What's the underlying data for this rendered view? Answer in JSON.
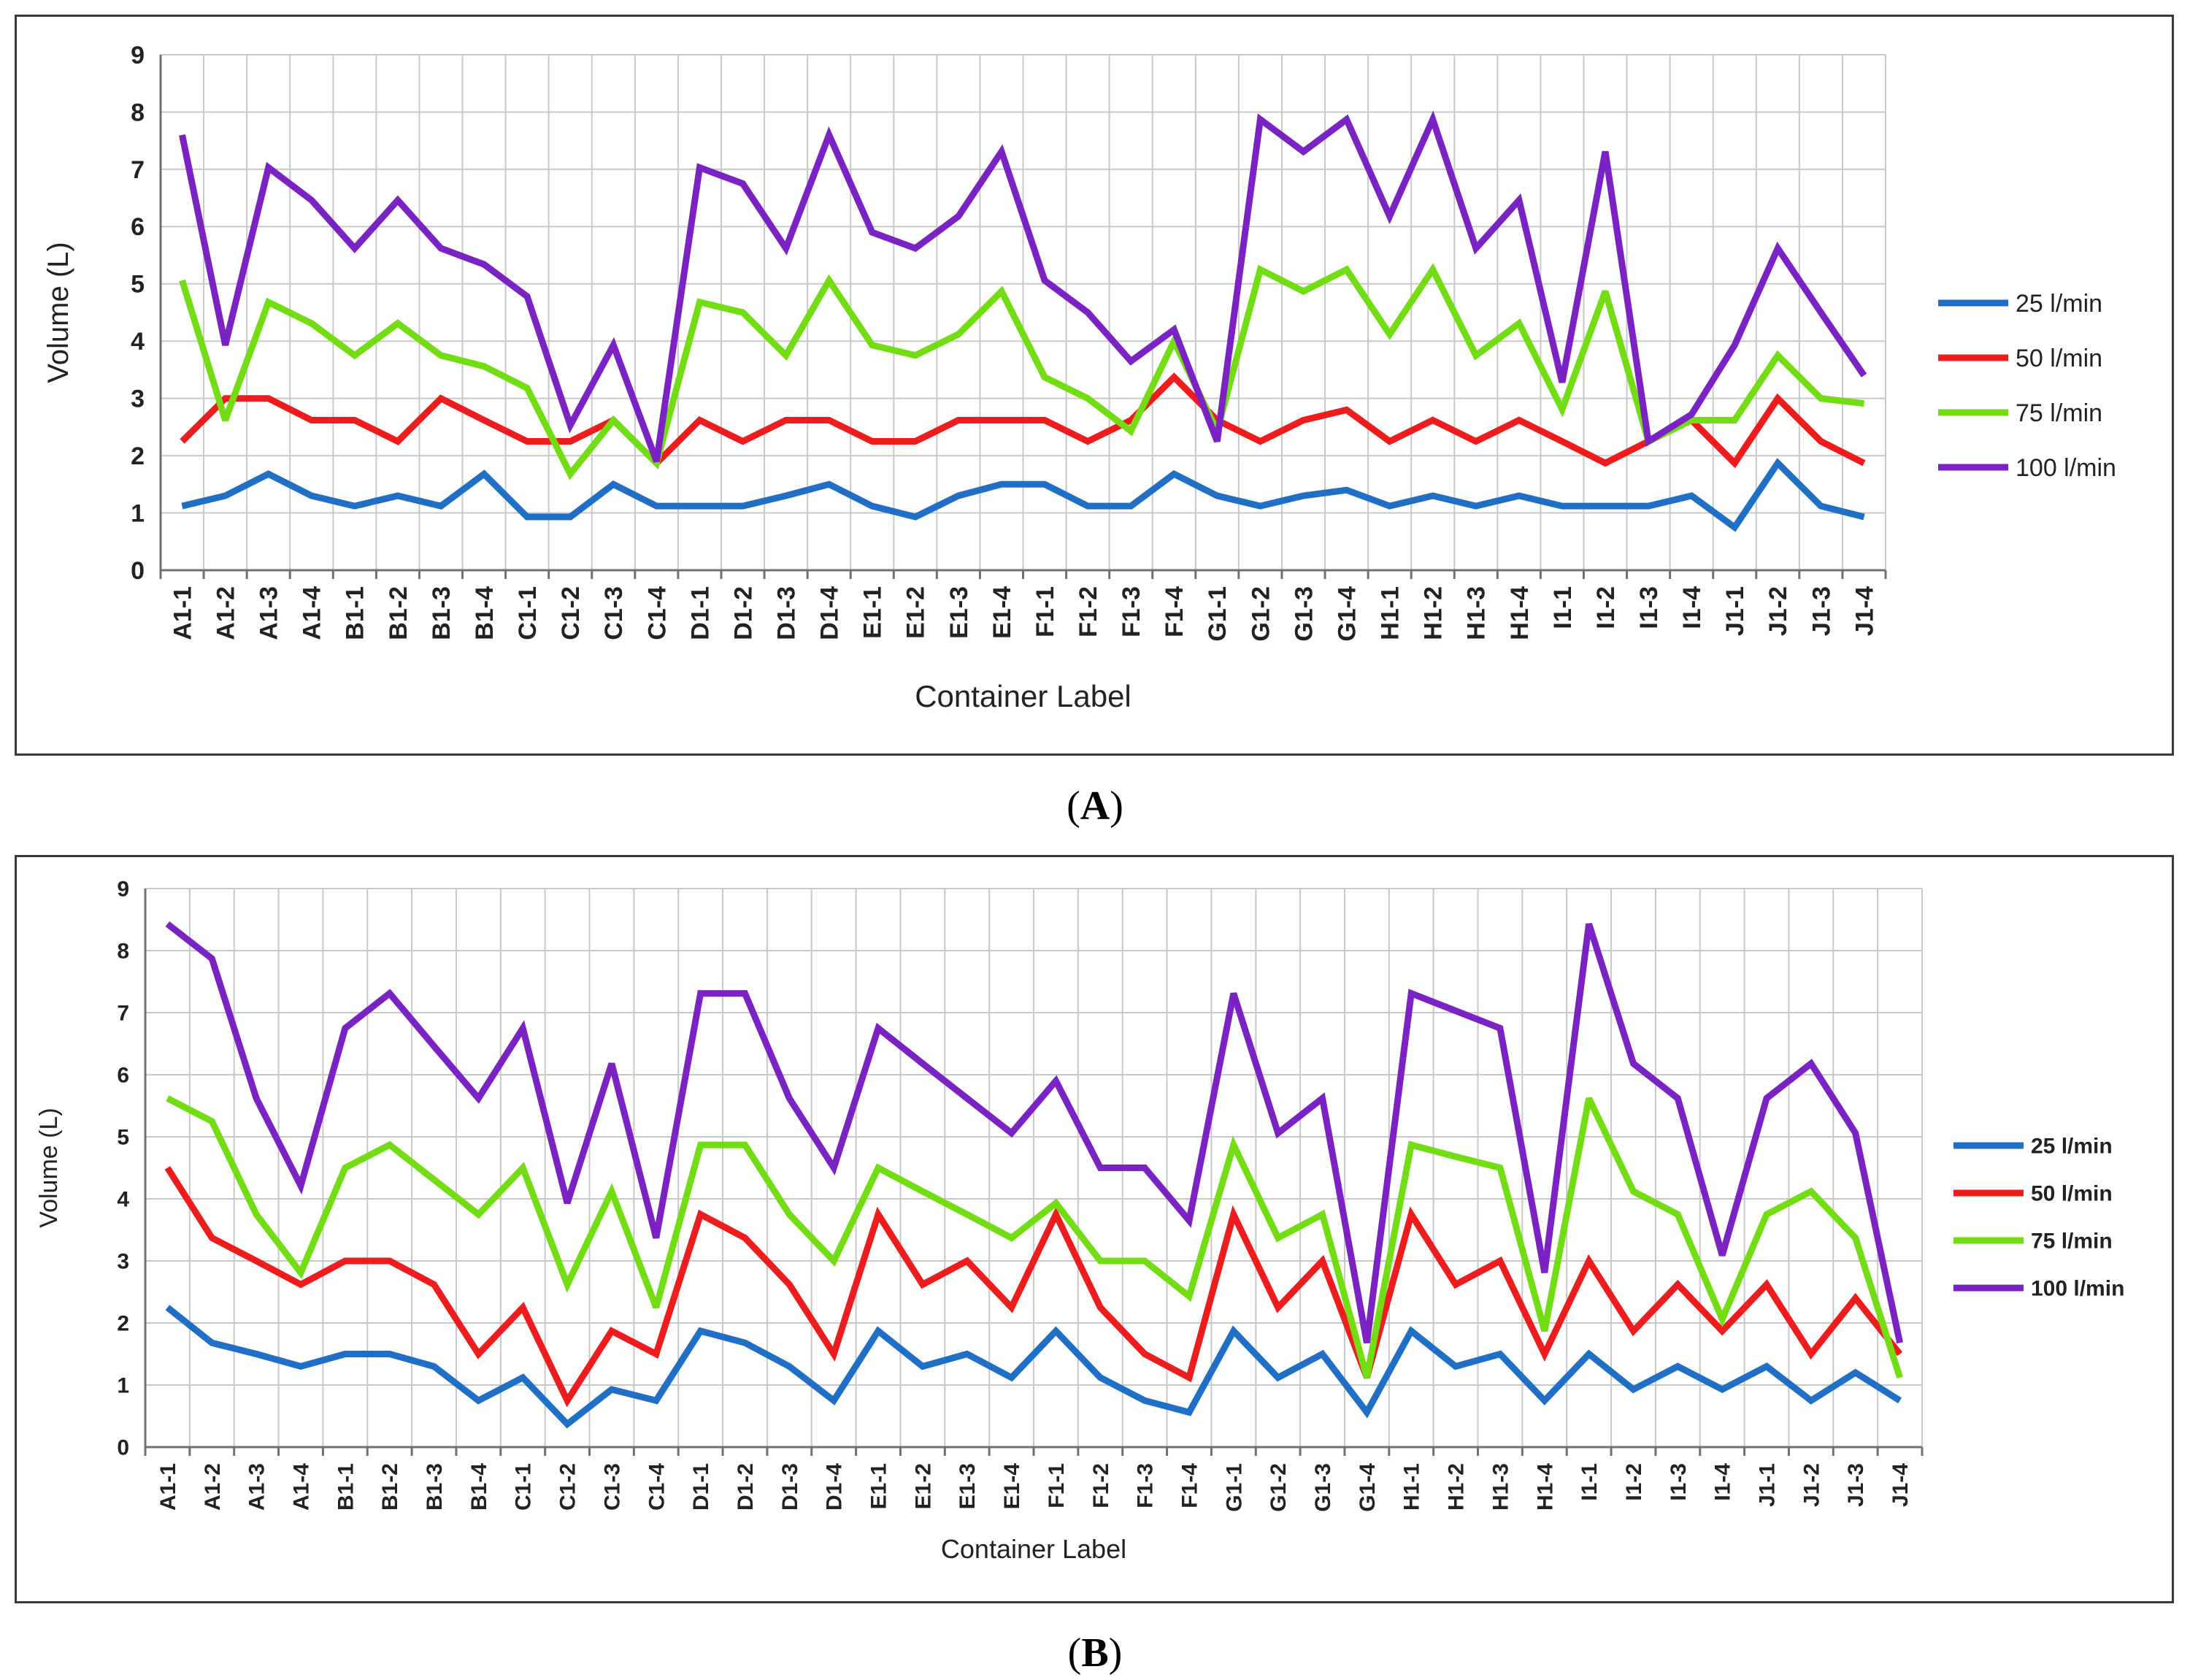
{
  "captions": {
    "a_letter": "A",
    "b_letter": "B"
  },
  "chart_data": [
    {
      "type": "line",
      "panel": "A",
      "xlabel": "Container Label",
      "ylabel": "Volume (L)",
      "ylim": [
        0,
        9
      ],
      "yticks": [
        "0",
        "1",
        "2",
        "3",
        "4",
        "5",
        "6",
        "7",
        "8",
        "9"
      ],
      "grid": true,
      "legend_position": "right",
      "categories": [
        "A1-1",
        "A1-2",
        "A1-3",
        "A1-4",
        "B1-1",
        "B1-2",
        "B1-3",
        "B1-4",
        "C1-1",
        "C1-2",
        "C1-3",
        "C1-4",
        "D1-1",
        "D1-2",
        "D1-3",
        "D1-4",
        "E1-1",
        "E1-2",
        "E1-3",
        "E1-4",
        "F1-1",
        "F1-2",
        "F1-3",
        "F1-4",
        "G1-1",
        "G1-2",
        "G1-3",
        "G1-4",
        "H1-1",
        "H1-2",
        "H1-3",
        "H1-4",
        "I1-1",
        "I1-2",
        "I1-3",
        "I1-4",
        "J1-1",
        "J1-2",
        "J1-3",
        "J1-4"
      ],
      "series": [
        {
          "name": "25 l/min",
          "color": "#1f6fc6",
          "values": [
            1.12,
            1.3,
            1.68,
            1.3,
            1.12,
            1.3,
            1.12,
            1.68,
            0.93,
            0.93,
            1.5,
            1.12,
            1.12,
            1.12,
            1.3,
            1.5,
            1.12,
            0.93,
            1.3,
            1.5,
            1.5,
            1.12,
            1.12,
            1.68,
            1.3,
            1.12,
            1.3,
            1.4,
            1.12,
            1.3,
            1.12,
            1.3,
            1.12,
            1.12,
            1.12,
            1.3,
            0.75,
            1.87,
            1.12,
            0.93
          ]
        },
        {
          "name": "50 l/min",
          "color": "#ee1c1c",
          "values": [
            2.25,
            3.0,
            3.0,
            2.62,
            2.62,
            2.25,
            3.0,
            2.62,
            2.25,
            2.25,
            2.62,
            1.87,
            2.62,
            2.25,
            2.62,
            2.62,
            2.25,
            2.25,
            2.62,
            2.62,
            2.62,
            2.25,
            2.62,
            3.37,
            2.62,
            2.25,
            2.62,
            2.8,
            2.25,
            2.62,
            2.25,
            2.62,
            2.25,
            1.87,
            2.25,
            2.62,
            1.87,
            3.0,
            2.25,
            1.87
          ]
        },
        {
          "name": "75 l/min",
          "color": "#72dd12",
          "values": [
            5.06,
            2.62,
            4.68,
            4.31,
            3.75,
            4.31,
            3.75,
            3.56,
            3.18,
            1.68,
            2.62,
            1.87,
            4.68,
            4.5,
            3.75,
            5.06,
            3.93,
            3.75,
            4.12,
            4.87,
            3.37,
            3.0,
            2.43,
            4.0,
            2.43,
            5.25,
            4.87,
            5.25,
            4.12,
            5.25,
            3.75,
            4.31,
            2.81,
            4.87,
            2.25,
            2.62,
            2.62,
            3.75,
            3.0,
            2.91
          ]
        },
        {
          "name": "100 l/min",
          "color": "#7a22c4",
          "values": [
            7.6,
            3.93,
            7.03,
            6.46,
            5.62,
            6.46,
            5.62,
            5.34,
            4.78,
            2.53,
            3.93,
            1.9,
            7.03,
            6.75,
            5.62,
            7.6,
            5.9,
            5.62,
            6.18,
            7.31,
            5.06,
            4.5,
            3.65,
            4.2,
            2.25,
            7.87,
            7.31,
            7.87,
            6.18,
            7.87,
            5.62,
            6.46,
            3.28,
            7.31,
            2.25,
            2.72,
            3.93,
            5.62,
            4.5,
            3.4
          ]
        }
      ]
    },
    {
      "type": "line",
      "panel": "B",
      "xlabel": "Container Label",
      "ylabel": "Volume (L)",
      "ylim": [
        0,
        9
      ],
      "yticks": [
        "0",
        "1",
        "2",
        "3",
        "4",
        "5",
        "6",
        "7",
        "8",
        "9"
      ],
      "grid": true,
      "legend_position": "right",
      "categories": [
        "A1-1",
        "A1-2",
        "A1-3",
        "A1-4",
        "B1-1",
        "B1-2",
        "B1-3",
        "B1-4",
        "C1-1",
        "C1-2",
        "C1-3",
        "C1-4",
        "D1-1",
        "D1-2",
        "D1-3",
        "D1-4",
        "E1-1",
        "E1-2",
        "E1-3",
        "E1-4",
        "F1-1",
        "F1-2",
        "F1-3",
        "F1-4",
        "G1-1",
        "G1-2",
        "G1-3",
        "G1-4",
        "H1-1",
        "H1-2",
        "H1-3",
        "H1-4",
        "I1-1",
        "I1-2",
        "I1-3",
        "I1-4",
        "J1-1",
        "J1-2",
        "J1-3",
        "J1-4"
      ],
      "series": [
        {
          "name": "25 l/min",
          "color": "#1f6fc6",
          "values": [
            2.25,
            1.68,
            1.5,
            1.3,
            1.5,
            1.5,
            1.3,
            0.75,
            1.12,
            0.37,
            0.93,
            0.75,
            1.87,
            1.68,
            1.3,
            0.75,
            1.87,
            1.3,
            1.5,
            1.12,
            1.87,
            1.12,
            0.75,
            0.56,
            1.87,
            1.12,
            1.5,
            0.56,
            1.87,
            1.3,
            1.5,
            0.75,
            1.5,
            0.93,
            1.3,
            0.93,
            1.3,
            0.75,
            1.2,
            0.75
          ]
        },
        {
          "name": "50 l/min",
          "color": "#ee1c1c",
          "values": [
            4.5,
            3.37,
            3.0,
            2.62,
            3.0,
            3.0,
            2.62,
            1.5,
            2.25,
            0.75,
            1.87,
            1.5,
            3.75,
            3.37,
            2.62,
            1.5,
            3.75,
            2.62,
            3.0,
            2.25,
            3.75,
            2.25,
            1.5,
            1.12,
            3.75,
            2.25,
            3.0,
            1.12,
            3.75,
            2.62,
            3.0,
            1.5,
            3.0,
            1.87,
            2.62,
            1.87,
            2.62,
            1.5,
            2.4,
            1.5
          ]
        },
        {
          "name": "75 l/min",
          "color": "#72dd12",
          "values": [
            5.62,
            5.25,
            3.75,
            2.81,
            4.5,
            4.87,
            4.31,
            3.75,
            4.5,
            2.62,
            4.12,
            2.25,
            4.87,
            4.87,
            3.75,
            3.0,
            4.5,
            4.12,
            3.75,
            3.37,
            3.93,
            3.0,
            3.0,
            2.43,
            4.87,
            3.37,
            3.75,
            1.12,
            4.87,
            4.68,
            4.5,
            1.87,
            5.62,
            4.12,
            3.75,
            2.06,
            3.75,
            4.12,
            3.37,
            1.12
          ]
        },
        {
          "name": "100 l/min",
          "color": "#7a22c4",
          "values": [
            8.43,
            7.87,
            5.62,
            4.21,
            6.75,
            7.31,
            6.46,
            5.62,
            6.75,
            3.93,
            6.18,
            3.37,
            7.31,
            7.31,
            5.62,
            4.5,
            6.75,
            6.18,
            5.62,
            5.06,
            5.9,
            4.5,
            4.5,
            3.65,
            7.31,
            5.06,
            5.62,
            1.68,
            7.31,
            7.03,
            6.75,
            2.81,
            8.43,
            6.18,
            5.62,
            3.09,
            5.62,
            6.18,
            5.06,
            1.68
          ]
        }
      ]
    }
  ]
}
